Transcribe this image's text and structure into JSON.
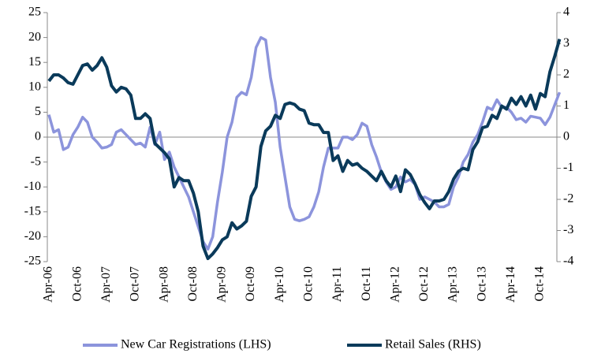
{
  "chart_data": {
    "type": "line",
    "categories": [
      "Apr-06",
      null,
      null,
      null,
      null,
      null,
      "Oct-06",
      null,
      null,
      null,
      null,
      null,
      "Apr-07",
      null,
      null,
      null,
      null,
      null,
      "Oct-07",
      null,
      null,
      null,
      null,
      null,
      "Apr-08",
      null,
      null,
      null,
      null,
      null,
      "Oct-08",
      null,
      null,
      null,
      null,
      null,
      "Apr-09",
      null,
      null,
      null,
      null,
      null,
      "Oct-09",
      null,
      null,
      null,
      null,
      null,
      "Apr-10",
      null,
      null,
      null,
      null,
      null,
      "Oct-10",
      null,
      null,
      null,
      null,
      null,
      "Apr-11",
      null,
      null,
      null,
      null,
      null,
      "Oct-11",
      null,
      null,
      null,
      null,
      null,
      "Apr-12",
      null,
      null,
      null,
      null,
      null,
      "Oct-12",
      null,
      null,
      null,
      null,
      null,
      "Apr-13",
      null,
      null,
      null,
      null,
      null,
      "Oct-13",
      null,
      null,
      null,
      null,
      null,
      "Apr-14",
      null,
      null,
      null,
      null,
      null,
      "Oct-14",
      null,
      null,
      null,
      null
    ],
    "series": [
      {
        "name": "New Car Registrations (LHS)",
        "color": "#8c94dc",
        "axis": "y",
        "values": [
          4.5,
          1,
          1.5,
          -2.5,
          -2,
          0.5,
          2,
          4,
          3,
          0,
          -1,
          -2.2,
          -2,
          -1.5,
          1,
          1.5,
          0.5,
          -0.5,
          -1.5,
          -1.2,
          -2,
          2,
          -1.5,
          1,
          -4.5,
          -3,
          -6,
          -8,
          -10,
          -12,
          -15,
          -18,
          -21,
          -22.5,
          -20,
          -13,
          -7,
          0,
          3,
          8,
          9,
          8.5,
          12,
          18,
          20,
          19.5,
          12,
          7,
          -2,
          -8,
          -14,
          -16.5,
          -16.8,
          -16.5,
          -16,
          -14,
          -11,
          -6,
          -2.2,
          -2.2,
          -2.2,
          0,
          0,
          -0.5,
          0.5,
          2.8,
          2.2,
          -1.5,
          -4,
          -7,
          -9,
          -10.5,
          -10,
          -8,
          -9,
          -8.5,
          -9.5,
          -12.5,
          -12,
          -12.5,
          -13,
          -14,
          -14,
          -13.5,
          -10,
          -8,
          -5,
          -3.5,
          -1,
          0.5,
          3,
          6,
          5.5,
          7.5,
          6,
          6,
          5,
          3.5,
          3.8,
          3,
          4.2,
          4,
          3.8,
          2.5,
          4,
          6.5,
          9
        ]
      },
      {
        "name": "Retail Sales (RHS)",
        "color": "#0a3a5a",
        "axis": "y2",
        "values": [
          1.8,
          2,
          2,
          1.9,
          1.75,
          1.7,
          2,
          2.3,
          2.35,
          2.15,
          2.3,
          2.55,
          2.25,
          1.65,
          1.45,
          1.6,
          1.55,
          1.35,
          0.6,
          0.6,
          0.75,
          0.6,
          -0.2,
          -0.35,
          -0.5,
          -0.7,
          -1.6,
          -1.3,
          -1.4,
          -1.4,
          -1.8,
          -2.4,
          -3.5,
          -3.9,
          -3.75,
          -3.55,
          -3.3,
          -3.2,
          -2.75,
          -2.95,
          -2.85,
          -2.7,
          -1.9,
          -1.6,
          -0.3,
          0.2,
          0.35,
          0.7,
          0.6,
          1.05,
          1.1,
          1.05,
          0.9,
          0.85,
          0.45,
          0.4,
          0.4,
          0.15,
          0.15,
          -0.75,
          -0.6,
          -1.1,
          -0.75,
          -0.9,
          -0.85,
          -1,
          -1.1,
          -1.25,
          -1.4,
          -1.1,
          -1.4,
          -1.6,
          -1.25,
          -1.75,
          -1.05,
          -1.2,
          -1.5,
          -1.85,
          -2.1,
          -2.3,
          -2.05,
          -2.05,
          -2,
          -1.75,
          -1.35,
          -1.1,
          -1,
          -1.05,
          -0.4,
          -0.15,
          0.3,
          0.35,
          0.7,
          0.6,
          1,
          0.9,
          1.25,
          1.05,
          1.3,
          1,
          1.35,
          0.9,
          1.4,
          1.3,
          2.1,
          2.6,
          3.15
        ]
      }
    ],
    "ylim": [
      -25,
      25
    ],
    "yticks": [
      25,
      20,
      15,
      10,
      5,
      0,
      -5,
      -10,
      -15,
      -20,
      -25
    ],
    "y2lim": [
      -4,
      4
    ],
    "y2ticks": [
      4,
      3,
      2,
      1,
      0,
      -1,
      -2,
      -3,
      -4
    ],
    "legend": "bottom"
  }
}
